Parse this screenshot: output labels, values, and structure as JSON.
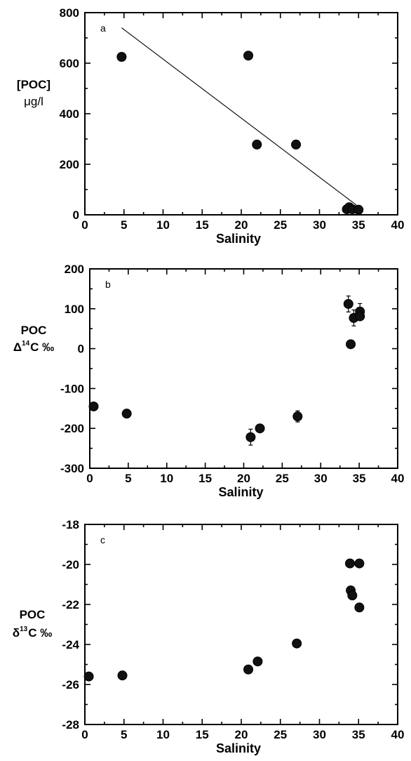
{
  "chart_data": [
    {
      "type": "scatter",
      "panel_label": "a",
      "xlabel": "Salinity",
      "ylabel_lines": [
        "[POC]",
        "μg/l"
      ],
      "xlim": [
        0,
        40
      ],
      "ylim": [
        0,
        800
      ],
      "xticks": [
        0,
        5,
        10,
        15,
        20,
        25,
        30,
        35,
        40
      ],
      "yticks": [
        0,
        200,
        400,
        600,
        800
      ],
      "points": [
        {
          "x": 4.7,
          "y": 625
        },
        {
          "x": 20.9,
          "y": 630
        },
        {
          "x": 22.0,
          "y": 278
        },
        {
          "x": 27.0,
          "y": 278
        },
        {
          "x": 33.5,
          "y": 22
        },
        {
          "x": 33.8,
          "y": 30
        },
        {
          "x": 34.2,
          "y": 22
        },
        {
          "x": 35.0,
          "y": 20
        }
      ],
      "fit_line": [
        {
          "x": 4.7,
          "y": 740
        },
        {
          "x": 35.0,
          "y": 32
        }
      ]
    },
    {
      "type": "scatter",
      "panel_label": "b",
      "xlabel": "Salinity",
      "ylabel_main": "POC",
      "ylabel_delta": "Δ",
      "ylabel_sup": "14",
      "ylabel_rest": "C ‰",
      "xlim": [
        0,
        40
      ],
      "ylim": [
        -300,
        200
      ],
      "xticks": [
        0,
        5,
        10,
        15,
        20,
        25,
        30,
        35,
        40
      ],
      "yticks": [
        -300,
        -200,
        -100,
        0,
        100,
        200
      ],
      "points": [
        {
          "x": 0.5,
          "y": -145,
          "err": 0
        },
        {
          "x": 4.8,
          "y": -163,
          "err": 0
        },
        {
          "x": 20.9,
          "y": -222,
          "err": 20
        },
        {
          "x": 22.1,
          "y": -200,
          "err": 0
        },
        {
          "x": 27.0,
          "y": -170,
          "err": 14
        },
        {
          "x": 33.6,
          "y": 112,
          "err": 20
        },
        {
          "x": 33.9,
          "y": 11,
          "err": 0
        },
        {
          "x": 34.3,
          "y": 77,
          "err": 20
        },
        {
          "x": 35.1,
          "y": 93,
          "err": 20
        },
        {
          "x": 35.1,
          "y": 81,
          "err": 0
        }
      ]
    },
    {
      "type": "scatter",
      "panel_label": "c",
      "xlabel": "Salinity",
      "ylabel_main": "POC",
      "ylabel_delta": "δ",
      "ylabel_sup": "13",
      "ylabel_rest": "C ‰",
      "xlim": [
        0,
        40
      ],
      "ylim": [
        -28,
        -18
      ],
      "xticks": [
        0,
        5,
        10,
        15,
        20,
        25,
        30,
        35,
        40
      ],
      "yticks": [
        -28,
        -26,
        -24,
        -22,
        -20,
        -18
      ],
      "points": [
        {
          "x": 0.5,
          "y": -25.6
        },
        {
          "x": 4.8,
          "y": -25.55
        },
        {
          "x": 20.9,
          "y": -25.25
        },
        {
          "x": 22.1,
          "y": -24.85
        },
        {
          "x": 27.1,
          "y": -23.95
        },
        {
          "x": 33.9,
          "y": -19.95
        },
        {
          "x": 34.0,
          "y": -21.3
        },
        {
          "x": 34.2,
          "y": -21.55
        },
        {
          "x": 35.1,
          "y": -19.95
        },
        {
          "x": 35.1,
          "y": -22.15
        }
      ]
    }
  ]
}
